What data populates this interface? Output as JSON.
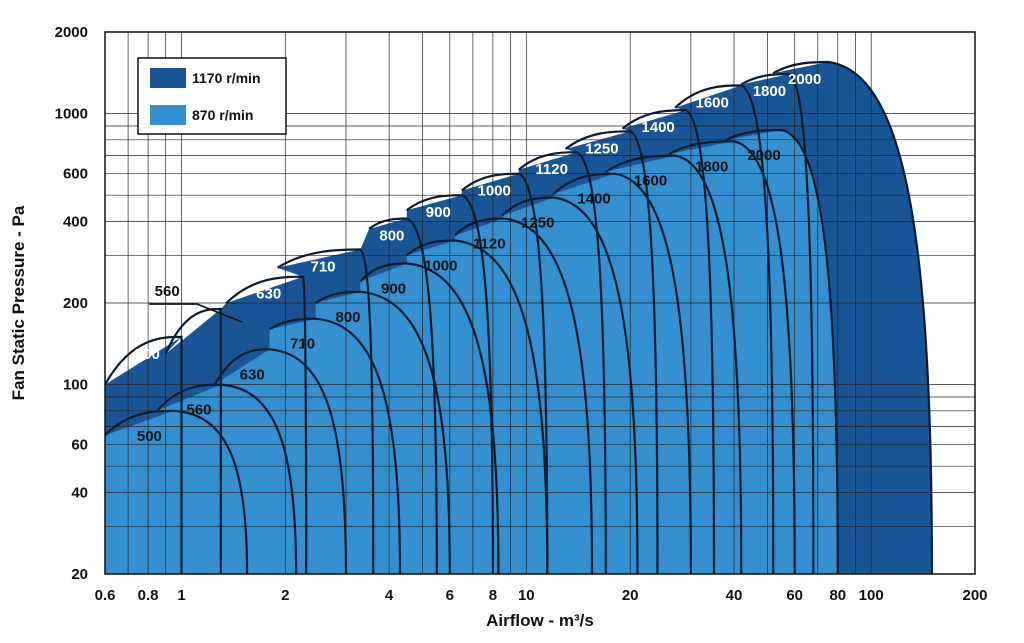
{
  "colors": {
    "rpm1170": "#1a5596",
    "rpm870": "#3490d0",
    "outline": "#0d1b2e",
    "grid": "#222222",
    "label_on_dark": "#ffffff",
    "label_on_light": "#111111"
  },
  "chart_data": {
    "type": "area",
    "title": "",
    "xlabel": "Airflow - m³/s",
    "ylabel": "Fan Static Pressure - Pa",
    "xscale": "log",
    "yscale": "log",
    "xlim": [
      0.6,
      200
    ],
    "ylim": [
      20,
      2000
    ],
    "grid": true,
    "legend_position": "top-left",
    "x_ticks": [
      0.6,
      0.8,
      1,
      2,
      4,
      6,
      8,
      10,
      20,
      40,
      60,
      80,
      100,
      200
    ],
    "x_tick_labels": [
      "0.6",
      "0.8",
      "1",
      "2",
      "4",
      "6",
      "8",
      "10",
      "20",
      "40",
      "60",
      "80",
      "100",
      "200"
    ],
    "y_ticks": [
      20,
      40,
      60,
      100,
      200,
      400,
      600,
      1000,
      2000
    ],
    "y_tick_labels": [
      "20",
      "40",
      "60",
      "100",
      "200",
      "400",
      "600",
      "1000",
      "2000"
    ],
    "legend": [
      {
        "label": "1170 r/min",
        "color_key": "rpm1170"
      },
      {
        "label": "870 r/min",
        "color_key": "rpm870"
      }
    ],
    "series": [
      {
        "name": "1170 r/min",
        "curves": [
          {
            "size": "500",
            "start_q": 0.6,
            "start_p": 100,
            "peak_q": 1.0,
            "peak_p": 150,
            "end_q": 1.0
          },
          {
            "size": "560",
            "start_q": 0.9,
            "start_p": 130,
            "peak_q": 1.3,
            "peak_p": 190,
            "end_q": 1.3
          },
          {
            "size": "630",
            "start_q": 1.35,
            "start_p": 200,
            "peak_q": 2.25,
            "peak_p": 250,
            "end_q": 2.3
          },
          {
            "size": "710",
            "start_q": 1.9,
            "start_p": 270,
            "peak_q": 3.3,
            "peak_p": 315,
            "end_q": 3.6
          },
          {
            "size": "800",
            "start_q": 3.5,
            "start_p": 375,
            "peak_q": 4.5,
            "peak_p": 410,
            "end_q": 5.5
          },
          {
            "size": "900",
            "start_q": 4.5,
            "start_p": 440,
            "peak_q": 6.5,
            "peak_p": 500,
            "end_q": 8.0
          },
          {
            "size": "1000",
            "start_q": 6.5,
            "start_p": 520,
            "peak_q": 9.5,
            "peak_p": 600,
            "end_q": 11.5
          },
          {
            "size": "1120",
            "start_q": 9.5,
            "start_p": 620,
            "peak_q": 14.0,
            "peak_p": 720,
            "end_q": 17.0
          },
          {
            "size": "1250",
            "start_q": 13.0,
            "start_p": 740,
            "peak_q": 20.0,
            "peak_p": 860,
            "end_q": 24.0
          },
          {
            "size": "1400",
            "start_q": 19.0,
            "start_p": 880,
            "peak_q": 29.0,
            "peak_p": 1030,
            "end_q": 35.0
          },
          {
            "size": "1600",
            "start_q": 27.0,
            "start_p": 1050,
            "peak_q": 42.0,
            "peak_p": 1270,
            "end_q": 52.0
          },
          {
            "size": "1800",
            "start_q": 42.0,
            "start_p": 1280,
            "peak_q": 58.0,
            "peak_p": 1400,
            "end_q": 68.0
          },
          {
            "size": "2000",
            "start_q": 52.0,
            "start_p": 1410,
            "peak_q": 75.0,
            "peak_p": 1550,
            "end_q": 150.0
          }
        ]
      },
      {
        "name": "870 r/min",
        "curves": [
          {
            "size": "500",
            "start_q": 0.6,
            "start_p": 65,
            "peak_q": 0.95,
            "peak_p": 80,
            "end_q": 1.55
          },
          {
            "size": "560",
            "start_q": 0.85,
            "start_p": 80,
            "peak_q": 1.3,
            "peak_p": 100,
            "end_q": 2.15
          },
          {
            "size": "630",
            "start_q": 1.25,
            "start_p": 100,
            "peak_q": 1.8,
            "peak_p": 135,
            "end_q": 3.0
          },
          {
            "size": "710",
            "start_q": 1.8,
            "start_p": 160,
            "peak_q": 2.45,
            "peak_p": 175,
            "end_q": 4.3
          },
          {
            "size": "800",
            "start_q": 2.45,
            "start_p": 200,
            "peak_q": 3.3,
            "peak_p": 220,
            "end_q": 6.0
          },
          {
            "size": "900",
            "start_q": 3.3,
            "start_p": 240,
            "peak_q": 4.5,
            "peak_p": 280,
            "end_q": 8.3
          },
          {
            "size": "1000",
            "start_q": 4.5,
            "start_p": 300,
            "peak_q": 6.2,
            "peak_p": 340,
            "end_q": 11.5
          },
          {
            "size": "1120",
            "start_q": 6.2,
            "start_p": 355,
            "peak_q": 8.6,
            "peak_p": 410,
            "end_q": 15.5
          },
          {
            "size": "1250",
            "start_q": 8.5,
            "start_p": 420,
            "peak_q": 12.0,
            "peak_p": 490,
            "end_q": 21.0
          },
          {
            "size": "1400",
            "start_q": 12.0,
            "start_p": 505,
            "peak_q": 18.0,
            "peak_p": 600,
            "end_q": 30.0
          },
          {
            "size": "1600",
            "start_q": 17.0,
            "start_p": 610,
            "peak_q": 27.0,
            "peak_p": 700,
            "end_q": 42.0
          },
          {
            "size": "1800",
            "start_q": 26.0,
            "start_p": 710,
            "peak_q": 40.0,
            "peak_p": 790,
            "end_q": 60.0
          },
          {
            "size": "2000",
            "start_q": 38.0,
            "start_p": 800,
            "peak_q": 55.0,
            "peak_p": 870,
            "end_q": 80.0
          }
        ]
      }
    ],
    "annotations": [
      {
        "text": "560",
        "series": "1170 r/min",
        "leader": true
      },
      {
        "text": "500",
        "series": "1170 r/min"
      },
      {
        "text": "630",
        "series": "1170 r/min"
      },
      {
        "text": "710",
        "series": "1170 r/min"
      },
      {
        "text": "800",
        "series": "1170 r/min"
      },
      {
        "text": "900",
        "series": "1170 r/min"
      },
      {
        "text": "1000",
        "series": "1170 r/min"
      },
      {
        "text": "1120",
        "series": "1170 r/min"
      },
      {
        "text": "1250",
        "series": "1170 r/min"
      },
      {
        "text": "1400",
        "series": "1170 r/min"
      },
      {
        "text": "1600",
        "series": "1170 r/min"
      },
      {
        "text": "1800",
        "series": "1170 r/min"
      },
      {
        "text": "2000",
        "series": "1170 r/min"
      },
      {
        "text": "500",
        "series": "870 r/min"
      },
      {
        "text": "560",
        "series": "870 r/min"
      },
      {
        "text": "630",
        "series": "870 r/min"
      },
      {
        "text": "710",
        "series": "870 r/min"
      },
      {
        "text": "800",
        "series": "870 r/min"
      },
      {
        "text": "900",
        "series": "870 r/min"
      },
      {
        "text": "1000",
        "series": "870 r/min"
      },
      {
        "text": "1120",
        "series": "870 r/min"
      },
      {
        "text": "1250",
        "series": "870 r/min"
      },
      {
        "text": "1400",
        "series": "870 r/min"
      },
      {
        "text": "1600",
        "series": "870 r/min"
      },
      {
        "text": "1800",
        "series": "870 r/min"
      },
      {
        "text": "2000",
        "series": "870 r/min"
      }
    ]
  }
}
